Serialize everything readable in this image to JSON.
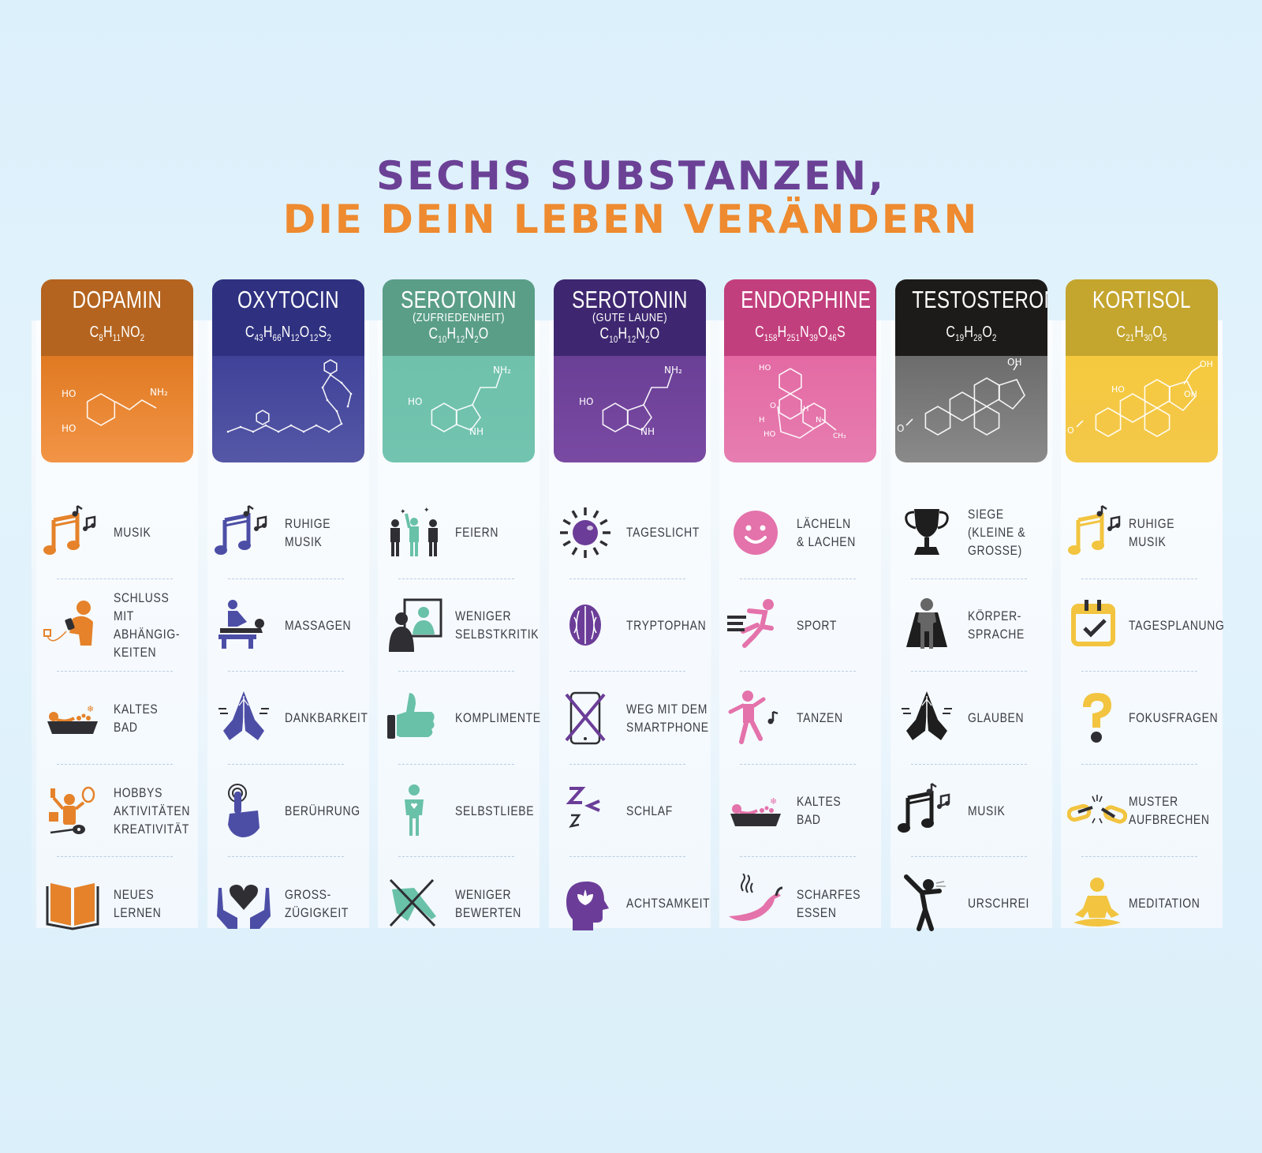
{
  "title": {
    "line1": "SECHS SUBSTANZEN,",
    "line2": "DIE DEIN LEBEN VERÄNDERN",
    "line1_color": "#6b4196",
    "line2_color": "#ee8a2f"
  },
  "columns": [
    {
      "name": "DOPAMIN",
      "subtitle": "",
      "formula": [
        [
          "C",
          "8"
        ],
        [
          "H",
          "11"
        ],
        [
          "NO",
          "2"
        ]
      ],
      "head_color": "#b4641f",
      "body_color_top": "#e07a22",
      "body_color_bottom": "#f29446",
      "icon_color": "#e5822a",
      "items": [
        {
          "label": "MUSIK",
          "icon": "music-notes-icon"
        },
        {
          "label": "SCHLUSS MIT\nABHÄNGIG-\nKEITEN",
          "icon": "phone-addiction-icon"
        },
        {
          "label": "KALTES BAD",
          "icon": "cold-bath-icon"
        },
        {
          "label": "HOBBYS\nAKTIVITÄTEN\nKREATIVITÄT",
          "icon": "hobbies-icon"
        },
        {
          "label": "NEUES\nLERNEN",
          "icon": "open-book-icon"
        }
      ]
    },
    {
      "name": "OXYTOCIN",
      "subtitle": "",
      "formula": [
        [
          "C",
          "43"
        ],
        [
          "H",
          "66"
        ],
        [
          "N",
          "12"
        ],
        [
          "O",
          "12"
        ],
        [
          "S",
          "2"
        ]
      ],
      "head_color": "#2f3180",
      "body_color_top": "#3f4298",
      "body_color_bottom": "#5557a6",
      "icon_color": "#4c4ea6",
      "items": [
        {
          "label": "RUHIGE\nMUSIK",
          "icon": "music-notes-icon"
        },
        {
          "label": "MASSAGEN",
          "icon": "massage-icon"
        },
        {
          "label": "DANKBARKEIT",
          "icon": "praying-hands-icon"
        },
        {
          "label": "BERÜHRUNG",
          "icon": "touch-finger-icon"
        },
        {
          "label": "GROSS-\nZÜGIGKEIT",
          "icon": "heart-in-hands-icon"
        }
      ]
    },
    {
      "name": "SEROTONIN",
      "subtitle": "(ZUFRIEDENHEIT)",
      "formula": [
        [
          "C",
          "10"
        ],
        [
          "H",
          "12"
        ],
        [
          "N",
          "2"
        ],
        [
          "O",
          ""
        ]
      ],
      "head_color": "#5a9e88",
      "body_color_top": "#6fc1ab",
      "body_color_bottom": "#72c4b0",
      "icon_color": "#69c1a8",
      "items": [
        {
          "label": "FEIERN",
          "icon": "celebrating-people-icon"
        },
        {
          "label": "WENIGER\nSELBSTKRITIK",
          "icon": "mirror-person-icon"
        },
        {
          "label": "KOMPLIMENTE",
          "icon": "thumbs-up-icon"
        },
        {
          "label": "SELBSTLIEBE",
          "icon": "self-love-person-icon"
        },
        {
          "label": "WENIGER\nBEWERTEN",
          "icon": "crossed-pointing-hand-icon"
        }
      ]
    },
    {
      "name": "SEROTONIN",
      "subtitle": "(GUTE LAUNE)",
      "formula": [
        [
          "C",
          "10"
        ],
        [
          "H",
          "12"
        ],
        [
          "N",
          "2"
        ],
        [
          "O",
          ""
        ]
      ],
      "head_color": "#3e2770",
      "body_color_top": "#6a3f96",
      "body_color_bottom": "#7a4aa3",
      "icon_color": "#6b3d98",
      "items": [
        {
          "label": "TAGESLICHT",
          "icon": "sun-icon"
        },
        {
          "label": "TRYPTOPHAN",
          "icon": "walnut-icon"
        },
        {
          "label": "WEG MIT DEM\nSMARTPHONE",
          "icon": "crossed-smartphone-icon"
        },
        {
          "label": "SCHLAF",
          "icon": "sleep-zzz-icon"
        },
        {
          "label": "ACHTSAMKEIT",
          "icon": "mindful-head-icon"
        }
      ]
    },
    {
      "name": "ENDORPHINE",
      "subtitle": "",
      "formula": [
        [
          "C",
          "158"
        ],
        [
          "H",
          "251"
        ],
        [
          "N",
          "39"
        ],
        [
          "O",
          "46"
        ],
        [
          "S",
          ""
        ]
      ],
      "head_color": "#c23f7d",
      "body_color_top": "#e46aa4",
      "body_color_bottom": "#e67db0",
      "icon_color": "#e472ab",
      "items": [
        {
          "label": "LÄCHELN\n& LACHEN",
          "icon": "smiley-icon"
        },
        {
          "label": "SPORT",
          "icon": "running-person-icon"
        },
        {
          "label": "TANZEN",
          "icon": "dancing-person-icon"
        },
        {
          "label": "KALTES BAD",
          "icon": "cold-bath-icon"
        },
        {
          "label": "SCHARFES\nESSEN",
          "icon": "hot-chili-icon"
        }
      ]
    },
    {
      "name": "TESTOSTERON",
      "subtitle": "",
      "formula": [
        [
          "C",
          "19"
        ],
        [
          "H",
          "28"
        ],
        [
          "O",
          "2"
        ]
      ],
      "head_color": "#1d1b1a",
      "body_color_top": "#6c6c6c",
      "body_color_bottom": "#8a8a8a",
      "icon_color": "#1e1e1e",
      "items": [
        {
          "label": "SIEGE\n(KLEINE &\nGROSSE)",
          "icon": "trophy-icon"
        },
        {
          "label": "KÖRPER-\nSPRACHE",
          "icon": "superhero-pose-icon"
        },
        {
          "label": "GLAUBEN",
          "icon": "praying-hands-icon"
        },
        {
          "label": "MUSIK",
          "icon": "music-notes-icon"
        },
        {
          "label": "URSCHREI",
          "icon": "screaming-person-icon"
        }
      ]
    },
    {
      "name": "KORTISOL",
      "subtitle": "",
      "formula": [
        [
          "C",
          "21"
        ],
        [
          "H",
          "30"
        ],
        [
          "O",
          "5"
        ]
      ],
      "head_color": "#c4a52e",
      "body_color_top": "#f5c93e",
      "body_color_bottom": "#f4c84a",
      "icon_color": "#f2c43f",
      "items": [
        {
          "label": "RUHIGE\nMUSIK",
          "icon": "music-notes-icon"
        },
        {
          "label": "TAGESPLANUNG",
          "icon": "calendar-check-icon"
        },
        {
          "label": "FOKUSFRAGEN",
          "icon": "question-mark-icon"
        },
        {
          "label": "MUSTER\nAUFBRECHEN",
          "icon": "broken-chain-icon"
        },
        {
          "label": "MEDITATION",
          "icon": "meditation-icon"
        }
      ]
    }
  ]
}
